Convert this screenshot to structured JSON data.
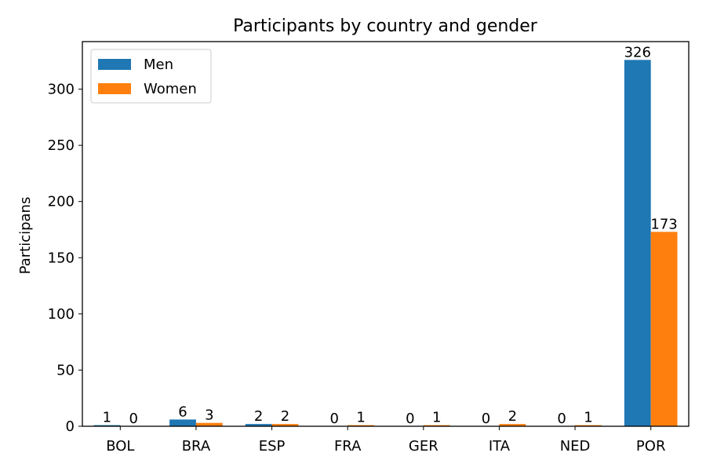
{
  "chart_data": {
    "type": "bar",
    "title": "Participants by country and gender",
    "xlabel": "",
    "ylabel": "Participans",
    "categories": [
      "BOL",
      "BRA",
      "ESP",
      "FRA",
      "GER",
      "ITA",
      "NED",
      "POR"
    ],
    "series": [
      {
        "name": "Men",
        "color": "#1f77b4",
        "values": [
          1,
          6,
          2,
          0,
          0,
          0,
          0,
          326
        ]
      },
      {
        "name": "Women",
        "color": "#ff7f0e",
        "values": [
          0,
          3,
          2,
          1,
          1,
          2,
          1,
          173
        ]
      }
    ],
    "ylim": [
      0,
      342.3
    ],
    "yticks": [
      0,
      50,
      100,
      150,
      200,
      250,
      300
    ],
    "legend_position": "top-left",
    "grid": false,
    "data_labels": true
  }
}
